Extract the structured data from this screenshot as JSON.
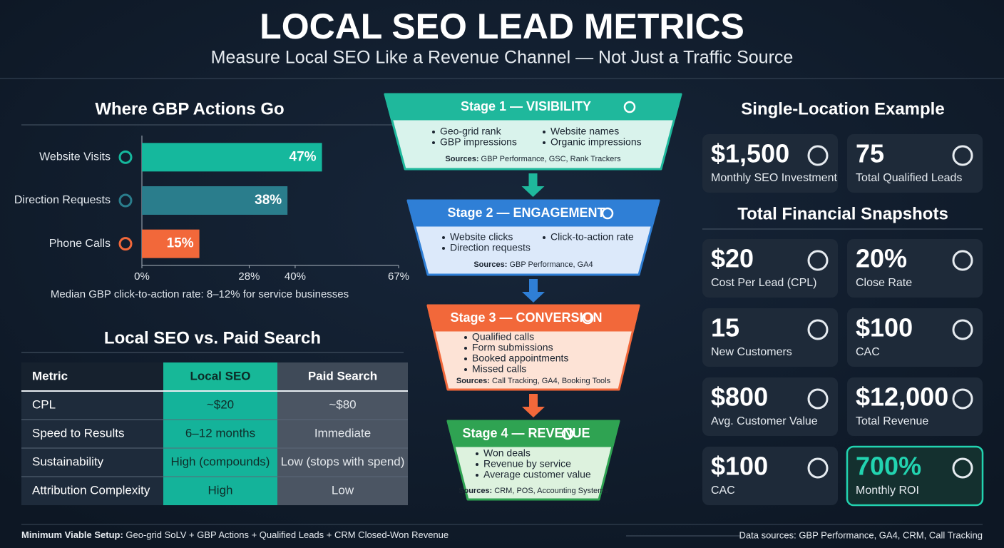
{
  "header": {
    "title": "LOCAL SEO LEAD METRICS",
    "subtitle": "Measure Local SEO Like a Revenue Channel — Not Just a Traffic Source"
  },
  "chart_data": {
    "type": "bar",
    "orientation": "horizontal",
    "title": "Where GBP Actions Go",
    "categories": [
      "Website Visits",
      "Direction Requests",
      "Phone Calls"
    ],
    "values": [
      47,
      38,
      15
    ],
    "value_labels": [
      "47%",
      "38%",
      "15%"
    ],
    "colors": [
      "#15b89d",
      "#2a7d8c",
      "#f2683a"
    ],
    "xlim": [
      0,
      67
    ],
    "xticks": [
      {
        "value": 0,
        "label": "0%"
      },
      {
        "value": 28,
        "label": "28%"
      },
      {
        "value": 40,
        "label": "40%"
      },
      {
        "value": 67,
        "label": "67%"
      }
    ],
    "note": "Median GBP click-to-action rate: 8–12% for service businesses"
  },
  "comparison": {
    "title": "Local SEO vs. Paid Search",
    "columns": [
      "Metric",
      "Local SEO",
      "Paid Search"
    ],
    "rows": [
      [
        "CPL",
        "~$20",
        "~$80"
      ],
      [
        "Speed to Results",
        "6–12 months",
        "Immediate"
      ],
      [
        "Sustainability",
        "High (compounds)",
        "Low (stops with spend)"
      ],
      [
        "Attribution Complexity",
        "High",
        "Low"
      ]
    ]
  },
  "funnel": {
    "stages": [
      {
        "title": "Stage 1 — VISIBILITY",
        "columns": [
          [
            "Geo-grid rank",
            "GBP impressions"
          ],
          [
            "Website names",
            "Organic impressions"
          ]
        ],
        "sources_label": "Sources:",
        "sources": "GBP Performance, GSC, Rank Trackers"
      },
      {
        "title": "Stage 2 — ENGAGEMENT",
        "columns": [
          [
            "Website clicks",
            "Direction requests"
          ],
          [
            "Click-to-action rate"
          ]
        ],
        "sources_label": "Sources:",
        "sources": "GBP Performance, GA4"
      },
      {
        "title": "Stage 3 — CONVERSION",
        "columns": [
          [
            "Qualified calls",
            "Form submissions",
            "Booked appointments",
            "Missed calls"
          ]
        ],
        "sources_label": "Sources:",
        "sources": "Call Tracking, GA4, Booking Tools"
      },
      {
        "title": "Stage 4 — REVENUE",
        "columns": [
          [
            "Won deals",
            "Revenue by service",
            "Average customer value"
          ]
        ],
        "sources_label": "Sources:",
        "sources": "CRM, POS, Accounting Systems"
      }
    ]
  },
  "example": {
    "title": "Single-Location Example",
    "cards": [
      {
        "value": "$1,500",
        "label": "Monthly SEO Investment"
      },
      {
        "value": "75",
        "label": "Total Qualified Leads"
      }
    ]
  },
  "snapshots": {
    "title": "Total Financial Snapshots",
    "cards": [
      {
        "value": "$20",
        "label": "Cost Per Lead (CPL)"
      },
      {
        "value": "20%",
        "label": "Close Rate"
      },
      {
        "value": "15",
        "label": "New Customers"
      },
      {
        "value": "$100",
        "label": "CAC"
      },
      {
        "value": "$800",
        "label": "Avg. Customer Value"
      },
      {
        "value": "$12,000",
        "label": "Total Revenue"
      },
      {
        "value": "$100",
        "label": "CAC"
      },
      {
        "value": "700%",
        "label": "Monthly ROI"
      }
    ]
  },
  "footer": {
    "setup_label": "Minimum Viable Setup:",
    "setup": "Geo-grid SoLV + GBP Actions + Qualified Leads + CRM Closed-Won Revenue",
    "sources": "Data sources: GBP Performance, GA4, CRM, Call Tracking"
  }
}
